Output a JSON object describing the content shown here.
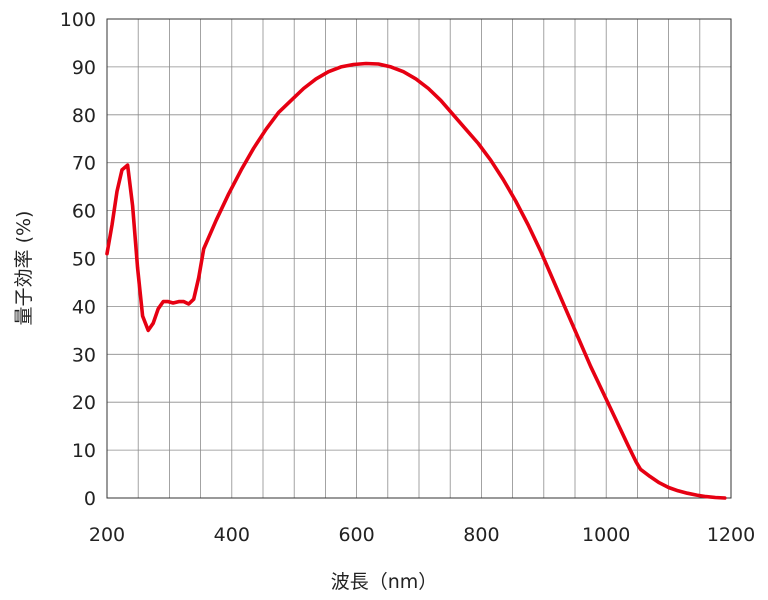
{
  "chart_data": {
    "type": "line",
    "xlabel": "波長（nm）",
    "ylabel": "量子効率 (%)",
    "xlim": [
      200,
      1200
    ],
    "ylim": [
      0,
      100
    ],
    "xticks": [
      "200",
      "400",
      "600",
      "800",
      "1000",
      "1200"
    ],
    "xtick_values": [
      200,
      400,
      600,
      800,
      1000,
      1200
    ],
    "yticks": [
      "0",
      "10",
      "20",
      "30",
      "40",
      "50",
      "60",
      "70",
      "80",
      "90",
      "100"
    ],
    "ytick_values": [
      0,
      10,
      20,
      30,
      40,
      50,
      60,
      70,
      80,
      90,
      100
    ],
    "x_gridlines": [
      200,
      250,
      300,
      350,
      400,
      450,
      500,
      550,
      600,
      650,
      700,
      750,
      800,
      850,
      900,
      950,
      1000,
      1050,
      1100,
      1150,
      1200
    ],
    "grid": true,
    "line_color": "#e60012",
    "series": [
      {
        "name": "",
        "points": [
          [
            200,
            51
          ],
          [
            208,
            57
          ],
          [
            216,
            64
          ],
          [
            224,
            68.5
          ],
          [
            233,
            69.5
          ],
          [
            241,
            61
          ],
          [
            249,
            48
          ],
          [
            257,
            38
          ],
          [
            266,
            35
          ],
          [
            274,
            36.5
          ],
          [
            282,
            39.5
          ],
          [
            290,
            41
          ],
          [
            298,
            41
          ],
          [
            306,
            40.7
          ],
          [
            315,
            41
          ],
          [
            323,
            41
          ],
          [
            331,
            40.5
          ],
          [
            339,
            41.5
          ],
          [
            347,
            46
          ],
          [
            355,
            52
          ],
          [
            375,
            58
          ],
          [
            395,
            63.5
          ],
          [
            415,
            68.5
          ],
          [
            435,
            73
          ],
          [
            455,
            77
          ],
          [
            475,
            80.5
          ],
          [
            495,
            83
          ],
          [
            515,
            85.5
          ],
          [
            535,
            87.5
          ],
          [
            555,
            89
          ],
          [
            575,
            90
          ],
          [
            595,
            90.5
          ],
          [
            615,
            90.7
          ],
          [
            635,
            90.6
          ],
          [
            655,
            90
          ],
          [
            675,
            89
          ],
          [
            695,
            87.5
          ],
          [
            715,
            85.5
          ],
          [
            735,
            83
          ],
          [
            755,
            80
          ],
          [
            775,
            77
          ],
          [
            795,
            74
          ],
          [
            815,
            70.5
          ],
          [
            835,
            66.5
          ],
          [
            855,
            62
          ],
          [
            875,
            57
          ],
          [
            895,
            51.5
          ],
          [
            915,
            45.5
          ],
          [
            935,
            39.5
          ],
          [
            955,
            33.5
          ],
          [
            975,
            27.5
          ],
          [
            995,
            22
          ],
          [
            1015,
            16.5
          ],
          [
            1035,
            11
          ],
          [
            1048,
            7.5
          ],
          [
            1055,
            6
          ],
          [
            1070,
            4.5
          ],
          [
            1085,
            3.2
          ],
          [
            1100,
            2.2
          ],
          [
            1115,
            1.5
          ],
          [
            1130,
            1
          ],
          [
            1145,
            0.6
          ],
          [
            1160,
            0.3
          ],
          [
            1175,
            0.1
          ],
          [
            1190,
            0
          ]
        ]
      }
    ]
  }
}
